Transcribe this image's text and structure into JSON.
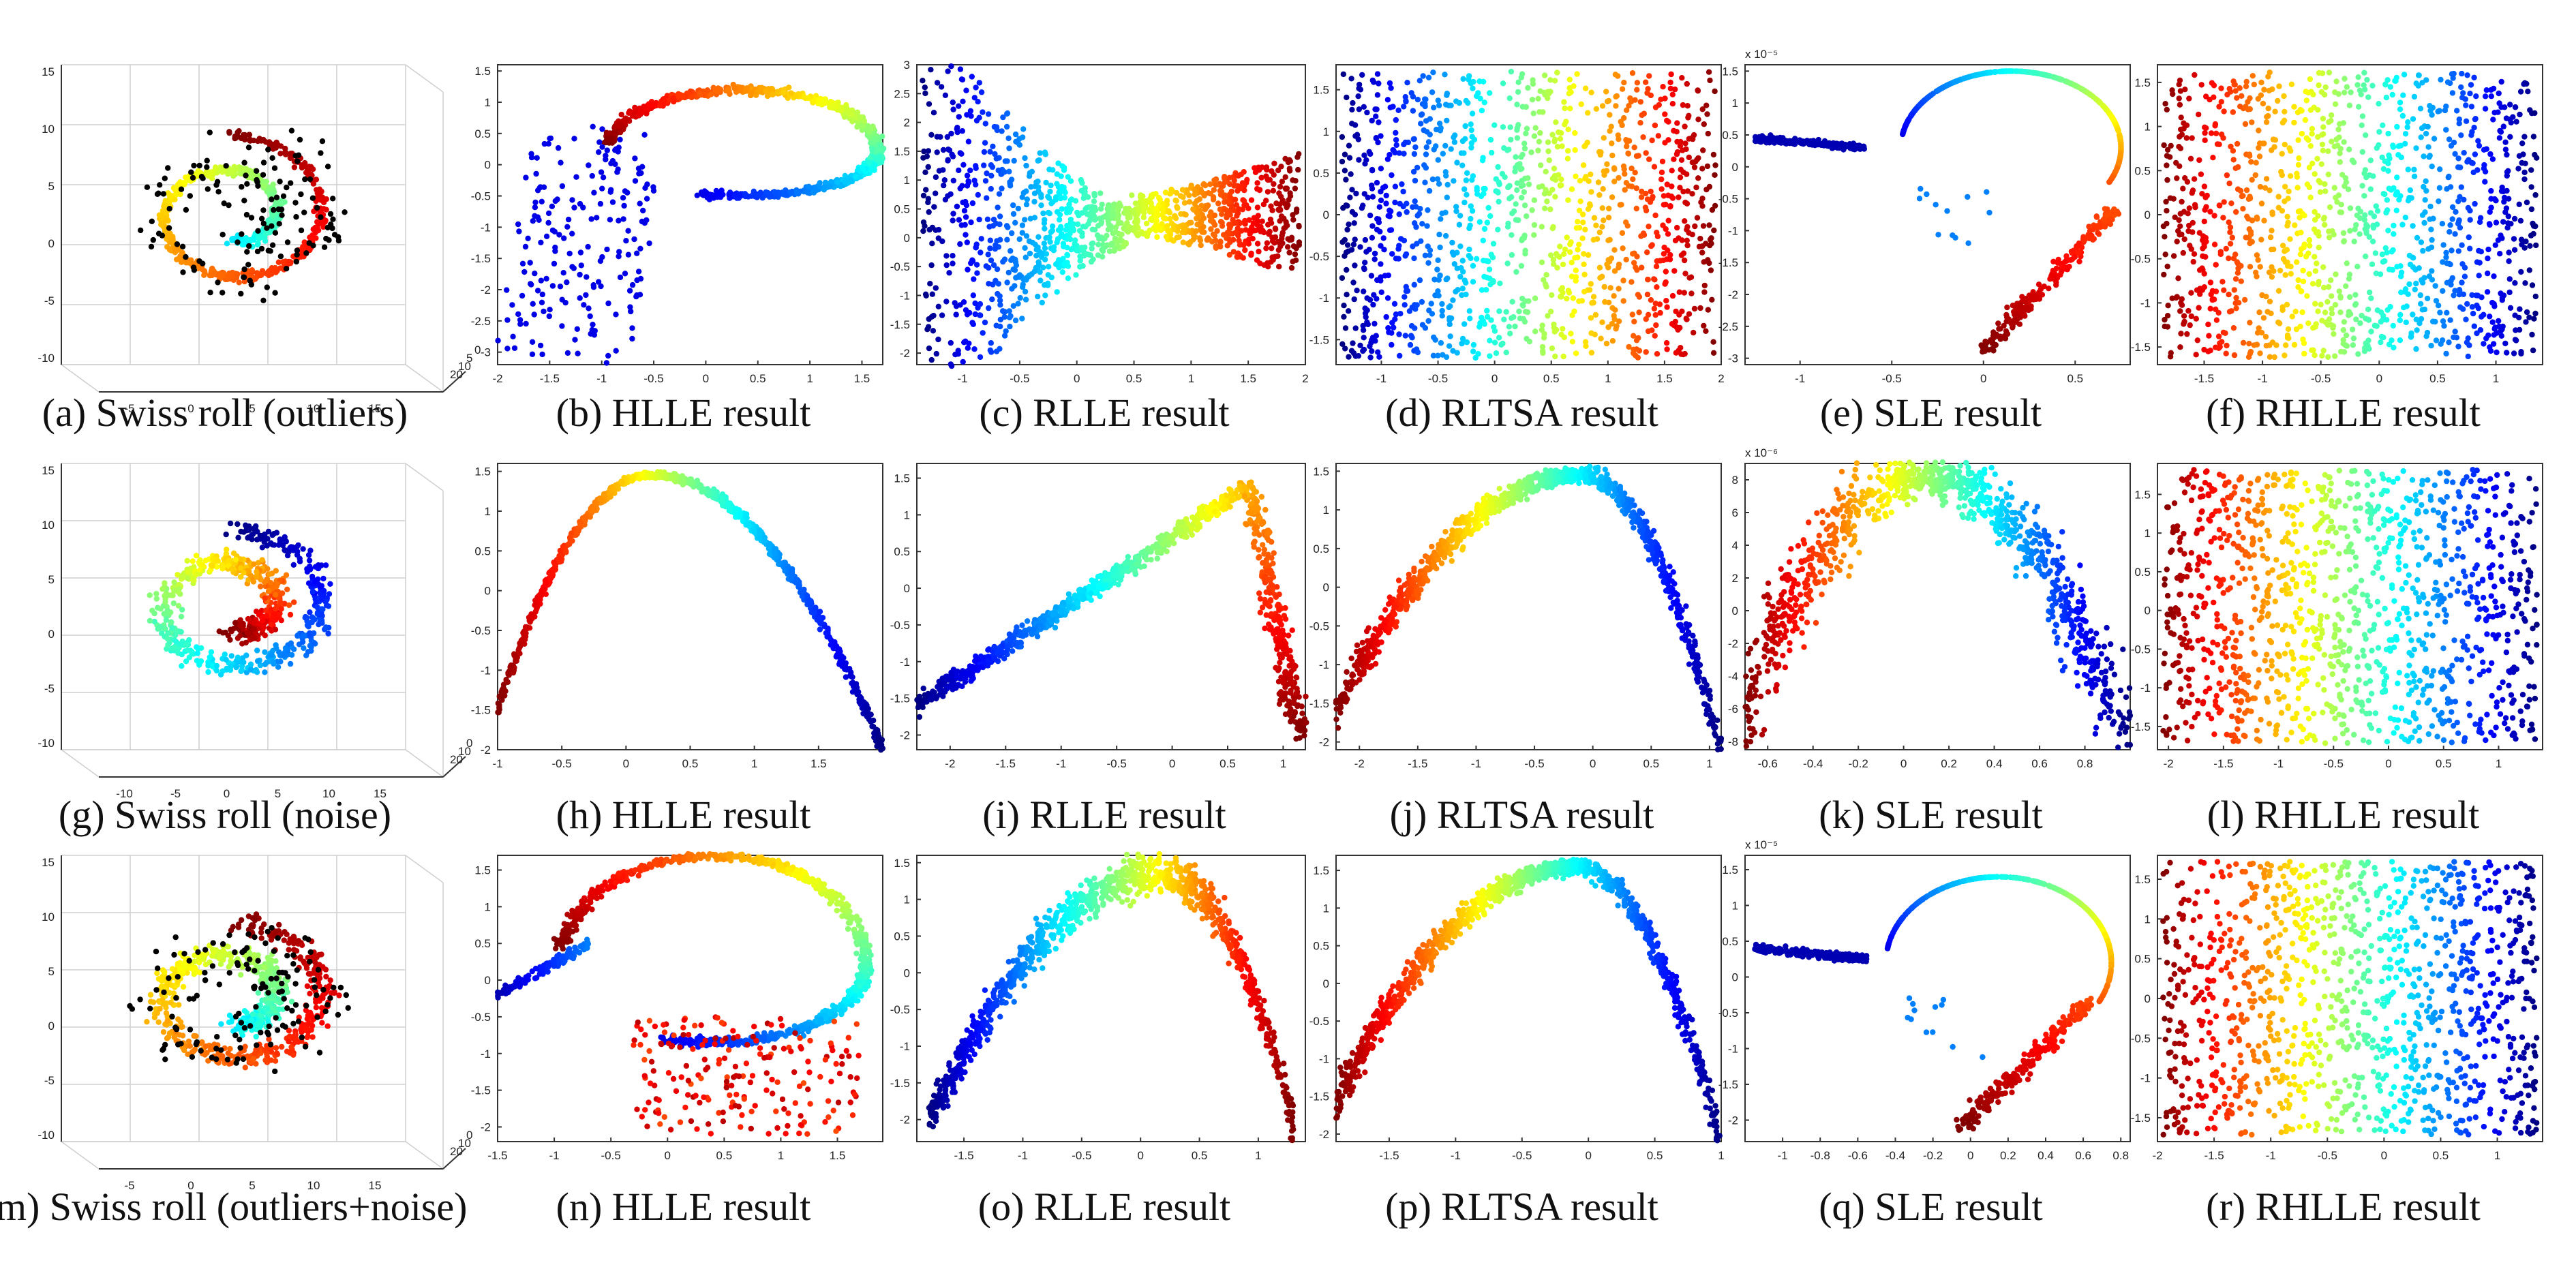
{
  "figure": {
    "description_text": "Embedding results on Swiss roll with outliers, noise, and outliers+noise"
  },
  "chart_data": [
    {
      "id": "a",
      "type": "scatter",
      "caption": "(a) Swiss roll (outliers)",
      "kind": "3d_roll",
      "variant": "outliers",
      "title": "",
      "xlabel": "",
      "ylabel": "",
      "xticks": [
        "-5",
        "0",
        "5",
        "10",
        "15"
      ],
      "yticks": [
        "-10",
        "-5",
        "0",
        "5",
        "10",
        "15"
      ],
      "zticks": [
        "20",
        "10",
        "5",
        "0"
      ],
      "xlim": [
        -10,
        15
      ],
      "ylim": [
        -10,
        15
      ]
    },
    {
      "id": "b",
      "type": "scatter",
      "caption": "(b) HLLE result",
      "kind": "loop_triangle",
      "title": "",
      "xlabel": "",
      "ylabel": "",
      "xticks": [
        "-2",
        "-1.5",
        "-1",
        "-0.5",
        "0",
        "0.5",
        "1",
        "1.5"
      ],
      "yticks": [
        "-3",
        "-2.5",
        "-2",
        "-1.5",
        "-1",
        "-0.5",
        "0",
        "0.5",
        "1",
        "1.5"
      ],
      "xlim": [
        -2,
        1.7
      ],
      "ylim": [
        -3.2,
        1.6
      ]
    },
    {
      "id": "c",
      "type": "scatter",
      "caption": "(c) RLLE result",
      "kind": "bowtie",
      "title": "",
      "xlabel": "",
      "ylabel": "",
      "xticks": [
        "-1",
        "-0.5",
        "0",
        "0.5",
        "1",
        "1.5",
        "2"
      ],
      "yticks": [
        "-2",
        "-1.5",
        "-1",
        "-0.5",
        "0",
        "0.5",
        "1",
        "1.5",
        "2",
        "2.5",
        "3"
      ],
      "xlim": [
        -1.4,
        2
      ],
      "ylim": [
        -2.2,
        3
      ]
    },
    {
      "id": "d",
      "type": "scatter",
      "caption": "(d) RLTSA result",
      "kind": "rect",
      "direction": "blue_to_red",
      "title": "",
      "xlabel": "",
      "ylabel": "",
      "xticks": [
        "-1",
        "-0.5",
        "0",
        "0.5",
        "1",
        "1.5",
        "2"
      ],
      "yticks": [
        "-1.5",
        "-1",
        "-0.5",
        "0",
        "0.5",
        "1",
        "1.5"
      ],
      "xlim": [
        -1.4,
        2
      ],
      "ylim": [
        -1.8,
        1.8
      ]
    },
    {
      "id": "e",
      "type": "scatter",
      "caption": "(e) SLE result",
      "kind": "hook_outliers",
      "title": "",
      "xlabel": "",
      "ylabel": "",
      "scale_label": "x 10⁻⁵",
      "xticks": [
        "-1",
        "-0.5",
        "0",
        "0.5"
      ],
      "yticks": [
        "-3",
        "-2.5",
        "-2",
        "-1.5",
        "-1",
        "-0.5",
        "0",
        "0.5",
        "1",
        "1.5"
      ],
      "xlim": [
        -1.3,
        0.8
      ],
      "ylim": [
        -3.1,
        1.6
      ]
    },
    {
      "id": "f",
      "type": "scatter",
      "caption": "(f) RHLLE result",
      "kind": "rect",
      "direction": "red_to_blue",
      "title": "",
      "xlabel": "",
      "ylabel": "",
      "xticks": [
        "-1.5",
        "-1",
        "-0.5",
        "0",
        "0.5",
        "1"
      ],
      "yticks": [
        "-1.5",
        "-1",
        "-0.5",
        "0",
        "0.5",
        "1",
        "1.5"
      ],
      "xlim": [
        -1.9,
        1.4
      ],
      "ylim": [
        -1.7,
        1.7
      ]
    },
    {
      "id": "g",
      "type": "scatter",
      "caption": "(g) Swiss roll (noise)",
      "kind": "3d_roll",
      "variant": "noise",
      "title": "",
      "xlabel": "",
      "ylabel": "",
      "xticks": [
        "-10",
        "-5",
        "0",
        "5",
        "10",
        "15"
      ],
      "yticks": [
        "-10",
        "-5",
        "0",
        "5",
        "10",
        "15"
      ],
      "zticks": [
        "20",
        "10",
        "0"
      ],
      "xlim": [
        -10,
        15
      ],
      "ylim": [
        -10,
        15
      ]
    },
    {
      "id": "h",
      "type": "scatter",
      "caption": "(h) HLLE result",
      "kind": "arch",
      "title": "",
      "xlabel": "",
      "ylabel": "",
      "xticks": [
        "-1",
        "-0.5",
        "0",
        "0.5",
        "1",
        "1.5"
      ],
      "yticks": [
        "-2",
        "-1.5",
        "-1",
        "-0.5",
        "0",
        "0.5",
        "1",
        "1.5"
      ],
      "xlim": [
        -1,
        2
      ],
      "ylim": [
        -2,
        1.6
      ]
    },
    {
      "id": "i",
      "type": "scatter",
      "caption": "(i) RLLE result",
      "kind": "rlle_v",
      "title": "",
      "xlabel": "",
      "ylabel": "",
      "xticks": [
        "-2",
        "-1.5",
        "-1",
        "-0.5",
        "0",
        "0.5",
        "1"
      ],
      "yticks": [
        "-2",
        "-1.5",
        "-1",
        "-0.5",
        "0",
        "0.5",
        "1",
        "1.5"
      ],
      "xlim": [
        -2.3,
        1.2
      ],
      "ylim": [
        -2.2,
        1.7
      ]
    },
    {
      "id": "j",
      "type": "scatter",
      "caption": "(j) RLTSA result",
      "kind": "arch_wide",
      "title": "",
      "xlabel": "",
      "ylabel": "",
      "xticks": [
        "-2",
        "-1.5",
        "-1",
        "-0.5",
        "0",
        "0.5",
        "1"
      ],
      "yticks": [
        "-2",
        "-1.5",
        "-1",
        "-0.5",
        "0",
        "0.5",
        "1",
        "1.5"
      ],
      "xlim": [
        -2.2,
        1.1
      ],
      "ylim": [
        -2.1,
        1.6
      ]
    },
    {
      "id": "k",
      "type": "scatter",
      "caption": "(k) SLE result",
      "kind": "parabola",
      "title": "",
      "xlabel": "",
      "ylabel": "",
      "scale_label": "x 10⁻⁶",
      "xticks": [
        "-0.6",
        "-0.4",
        "-0.2",
        "0",
        "0.2",
        "0.4",
        "0.6",
        "0.8"
      ],
      "yticks": [
        "-8",
        "-6",
        "-4",
        "-2",
        "0",
        "2",
        "4",
        "6",
        "8"
      ],
      "xlim": [
        -0.7,
        1
      ],
      "ylim": [
        -8.5,
        9
      ]
    },
    {
      "id": "l",
      "type": "scatter",
      "caption": "(l) RHLLE result",
      "kind": "rect",
      "direction": "red_to_blue",
      "title": "",
      "xlabel": "",
      "ylabel": "",
      "xticks": [
        "-2",
        "-1.5",
        "-1",
        "-0.5",
        "0",
        "0.5",
        "1"
      ],
      "yticks": [
        "-1.5",
        "-1",
        "-0.5",
        "0",
        "0.5",
        "1",
        "1.5"
      ],
      "xlim": [
        -2.1,
        1.4
      ],
      "ylim": [
        -1.8,
        1.9
      ]
    },
    {
      "id": "m",
      "type": "scatter",
      "caption": "(m) Swiss roll (outliers+noise)",
      "kind": "3d_roll",
      "variant": "both",
      "title": "",
      "xlabel": "",
      "ylabel": "",
      "xticks": [
        "-5",
        "0",
        "5",
        "10",
        "15"
      ],
      "yticks": [
        "-10",
        "-5",
        "0",
        "5",
        "10",
        "15"
      ],
      "zticks": [
        "20",
        "10",
        "0"
      ],
      "xlim": [
        -10,
        15
      ],
      "ylim": [
        -10,
        15
      ]
    },
    {
      "id": "n",
      "type": "scatter",
      "caption": "(n) HLLE result",
      "kind": "loop_open",
      "title": "",
      "xlabel": "",
      "ylabel": "",
      "xticks": [
        "-1.5",
        "-1",
        "-0.5",
        "0",
        "0.5",
        "1",
        "1.5"
      ],
      "yticks": [
        "-2",
        "-1.5",
        "-1",
        "-0.5",
        "0",
        "0.5",
        "1",
        "1.5"
      ],
      "xlim": [
        -1.5,
        1.9
      ],
      "ylim": [
        -2.2,
        1.7
      ]
    },
    {
      "id": "o",
      "type": "scatter",
      "caption": "(o) RLLE result",
      "kind": "arch_o",
      "title": "",
      "xlabel": "",
      "ylabel": "",
      "xticks": [
        "-1.5",
        "-1",
        "-0.5",
        "0",
        "0.5",
        "1"
      ],
      "yticks": [
        "-2",
        "-1.5",
        "-1",
        "-0.5",
        "0",
        "0.5",
        "1",
        "1.5"
      ],
      "xlim": [
        -1.9,
        1.4
      ],
      "ylim": [
        -2.3,
        1.6
      ]
    },
    {
      "id": "p",
      "type": "scatter",
      "caption": "(p) RLTSA result",
      "kind": "arch_p",
      "title": "",
      "xlabel": "",
      "ylabel": "",
      "xticks": [
        "-1.5",
        "-1",
        "-0.5",
        "0",
        "0.5",
        "1"
      ],
      "yticks": [
        "-2",
        "-1.5",
        "-1",
        "-0.5",
        "0",
        "0.5",
        "1",
        "1.5"
      ],
      "xlim": [
        -1.9,
        1
      ],
      "ylim": [
        -2.1,
        1.7
      ]
    },
    {
      "id": "q",
      "type": "scatter",
      "caption": "(q) SLE result",
      "kind": "hook_outliers2",
      "title": "",
      "xlabel": "",
      "ylabel": "",
      "scale_label": "x 10⁻⁵",
      "xticks": [
        "-1",
        "-0.8",
        "-0.6",
        "-0.4",
        "-0.2",
        "0",
        "0.2",
        "0.4",
        "0.6",
        "0.8"
      ],
      "yticks": [
        "-2",
        "-1.5",
        "-1",
        "-0.5",
        "0",
        "0.5",
        "1",
        "1.5"
      ],
      "xlim": [
        -1.2,
        0.85
      ],
      "ylim": [
        -2.3,
        1.7
      ]
    },
    {
      "id": "r",
      "type": "scatter",
      "caption": "(r) RHLLE result",
      "kind": "rect",
      "direction": "red_to_blue",
      "title": "",
      "xlabel": "",
      "ylabel": "",
      "xticks": [
        "-2",
        "-1.5",
        "-1",
        "-0.5",
        "0",
        "0.5",
        "1"
      ],
      "yticks": [
        "-1.5",
        "-1",
        "-0.5",
        "0",
        "0.5",
        "1",
        "1.5"
      ],
      "xlim": [
        -2,
        1.4
      ],
      "ylim": [
        -1.8,
        1.8
      ]
    }
  ]
}
